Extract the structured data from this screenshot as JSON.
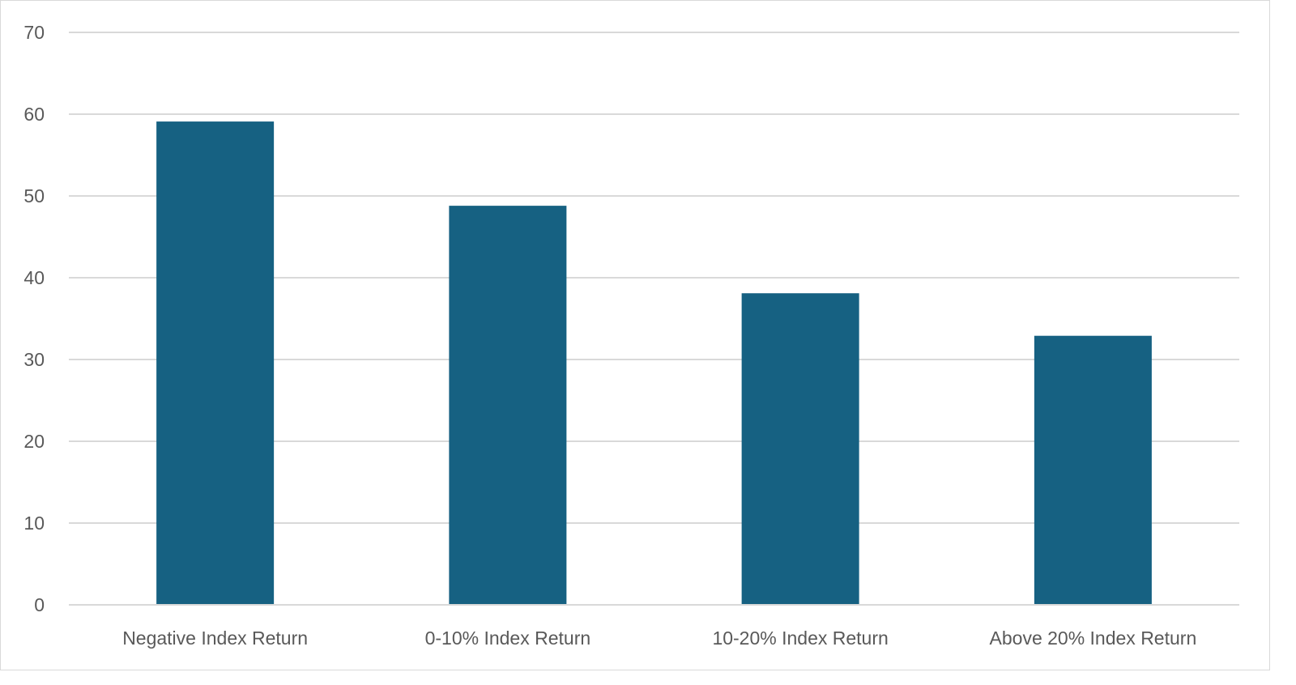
{
  "chart_data": {
    "type": "bar",
    "title": "",
    "xlabel": "",
    "ylabel": "",
    "categories": [
      "Negative Index Return",
      "0-10% Index Return",
      "10-20% Index Return",
      "Above 20% Index Return"
    ],
    "values": [
      59.1,
      48.8,
      38.1,
      32.9
    ],
    "ylim": [
      0,
      70
    ],
    "yticks": [
      0,
      10,
      20,
      30,
      40,
      50,
      60,
      70
    ],
    "grid": true,
    "legend": "none",
    "bar_color": "#166182",
    "grid_color": "#d9d9d9"
  }
}
